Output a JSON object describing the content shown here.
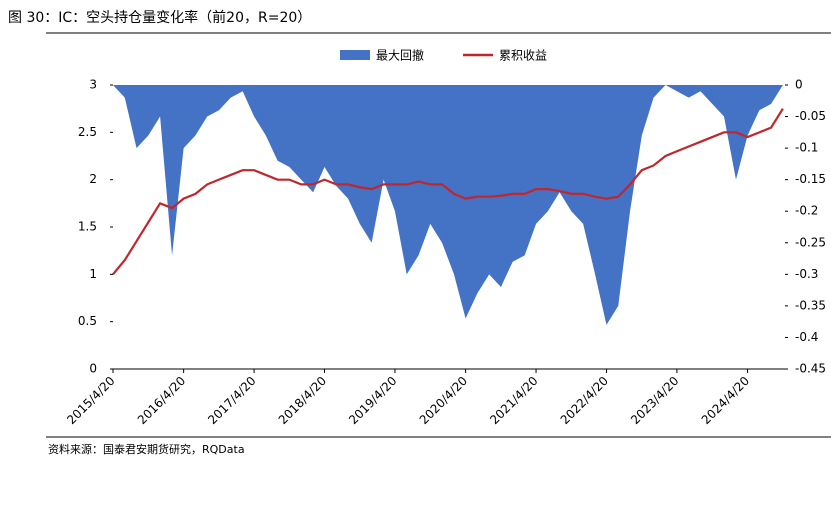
{
  "chart_data": {
    "type": "dual-axis-area-line",
    "title": "图 30：IC：空头持仓量变化率（前20，R=20）",
    "source": "资料来源：国泰君安期货研究，RQData",
    "x": [
      "2015/4/20",
      "2015/6/20",
      "2015/8/20",
      "2015/10/20",
      "2015/12/20",
      "2016/2/20",
      "2016/4/20",
      "2016/6/20",
      "2016/8/20",
      "2016/10/20",
      "2016/12/20",
      "2017/2/20",
      "2017/4/20",
      "2017/6/20",
      "2017/8/20",
      "2017/10/20",
      "2017/12/20",
      "2018/2/20",
      "2018/4/20",
      "2018/6/20",
      "2018/8/20",
      "2018/10/20",
      "2018/12/20",
      "2019/2/20",
      "2019/4/20",
      "2019/6/20",
      "2019/8/20",
      "2019/10/20",
      "2019/12/20",
      "2020/2/20",
      "2020/4/20",
      "2020/6/20",
      "2020/8/20",
      "2020/10/20",
      "2020/12/20",
      "2021/2/20",
      "2021/4/20",
      "2021/6/20",
      "2021/8/20",
      "2021/10/20",
      "2021/12/20",
      "2022/2/20",
      "2022/4/20",
      "2022/6/20",
      "2022/8/20",
      "2022/10/20",
      "2022/12/20",
      "2023/2/20",
      "2023/4/20",
      "2023/6/20",
      "2023/8/20",
      "2023/10/20",
      "2023/12/20",
      "2024/2/20",
      "2024/4/20",
      "2024/6/20",
      "2024/8/20",
      "2024/10/20"
    ],
    "xlim": [
      "2015/4/20",
      "2024/10/31"
    ],
    "xticks": [
      "2015/4/20",
      "2016/4/20",
      "2017/4/20",
      "2018/4/20",
      "2019/4/20",
      "2020/4/20",
      "2021/4/20",
      "2022/4/20",
      "2023/4/20",
      "2024/4/20"
    ],
    "series": [
      {
        "name": "最大回撤",
        "color": "#4472c4",
        "axis": "y2",
        "kind": "area",
        "values": [
          0,
          -0.02,
          -0.1,
          -0.08,
          -0.05,
          -0.27,
          -0.1,
          -0.08,
          -0.05,
          -0.04,
          -0.02,
          -0.01,
          -0.05,
          -0.08,
          -0.12,
          -0.13,
          -0.15,
          -0.17,
          -0.13,
          -0.16,
          -0.18,
          -0.22,
          -0.25,
          -0.15,
          -0.2,
          -0.3,
          -0.27,
          -0.22,
          -0.25,
          -0.3,
          -0.37,
          -0.33,
          -0.3,
          -0.32,
          -0.28,
          -0.27,
          -0.22,
          -0.2,
          -0.17,
          -0.2,
          -0.22,
          -0.3,
          -0.38,
          -0.35,
          -0.2,
          -0.08,
          -0.02,
          0,
          -0.01,
          -0.02,
          -0.01,
          -0.03,
          -0.05,
          -0.15,
          -0.08,
          -0.04,
          -0.03,
          0
        ]
      },
      {
        "name": "累积收益",
        "color": "#c0272d",
        "axis": "y",
        "kind": "line",
        "values": [
          1.0,
          1.15,
          1.35,
          1.55,
          1.75,
          1.7,
          1.8,
          1.85,
          1.95,
          2.0,
          2.05,
          2.1,
          2.1,
          2.05,
          2.0,
          2.0,
          1.95,
          1.95,
          2.0,
          1.95,
          1.95,
          1.92,
          1.9,
          1.95,
          1.95,
          1.95,
          1.98,
          1.95,
          1.95,
          1.85,
          1.8,
          1.82,
          1.82,
          1.83,
          1.85,
          1.85,
          1.9,
          1.9,
          1.88,
          1.85,
          1.85,
          1.82,
          1.8,
          1.82,
          1.95,
          2.1,
          2.15,
          2.25,
          2.3,
          2.35,
          2.4,
          2.45,
          2.5,
          2.5,
          2.45,
          2.5,
          2.55,
          2.75
        ]
      }
    ],
    "ylim": [
      0,
      3
    ],
    "yticks": [
      0,
      0.5,
      1,
      1.5,
      2,
      2.5,
      3
    ],
    "y2lim": [
      0,
      -0.45
    ],
    "y2ticks": [
      0,
      -0.05,
      -0.1,
      -0.15,
      -0.2,
      -0.25,
      -0.3,
      -0.35,
      -0.4,
      -0.45
    ]
  }
}
